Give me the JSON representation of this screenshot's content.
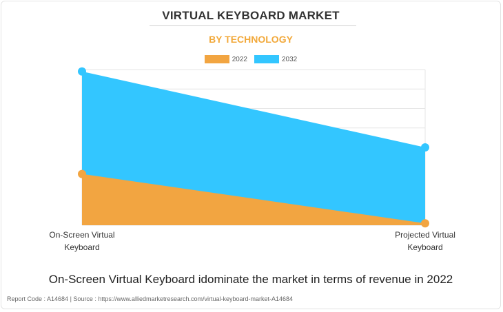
{
  "colors": {
    "series_2022": "#f2a541",
    "series_2032": "#33c6ff",
    "subtitle": "#f2a93b",
    "grid": "#e6e6e6"
  },
  "chart_data": {
    "type": "area",
    "title": "VIRTUAL KEYBOARD MARKET",
    "subtitle": "BY TECHNOLOGY",
    "categories": [
      "On-Screen Virtual Keyboard",
      "Projected Virtual Keyboard"
    ],
    "category_lines": [
      [
        "On-Screen Virtual",
        "Keyboard"
      ],
      [
        "Projected Virtual",
        "Keyboard"
      ]
    ],
    "series": [
      {
        "name": "2022",
        "values": [
          27,
          1
        ]
      },
      {
        "name": "2032",
        "values": [
          81,
          41
        ]
      }
    ],
    "ylim": [
      0,
      82
    ],
    "grid": true,
    "legend_position": "top-center",
    "xlabel": "",
    "ylabel": ""
  },
  "caption": "On-Screen Virtual Keyboard idominate the market in terms of revenue in 2022",
  "footer": "Report Code : A14684  |  Source : https://www.alliedmarketresearch.com/virtual-keyboard-market-A14684"
}
